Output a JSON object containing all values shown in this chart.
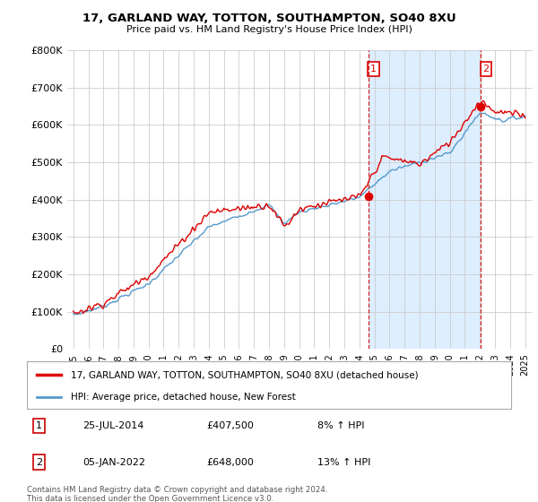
{
  "title": "17, GARLAND WAY, TOTTON, SOUTHAMPTON, SO40 8XU",
  "subtitle": "Price paid vs. HM Land Registry's House Price Index (HPI)",
  "legend_line1": "17, GARLAND WAY, TOTTON, SOUTHAMPTON, SO40 8XU (detached house)",
  "legend_line2": "HPI: Average price, detached house, New Forest",
  "annotation1_date": "25-JUL-2014",
  "annotation1_price": "£407,500",
  "annotation1_hpi": "8% ↑ HPI",
  "annotation2_date": "05-JAN-2022",
  "annotation2_price": "£648,000",
  "annotation2_hpi": "13% ↑ HPI",
  "footnote": "Contains HM Land Registry data © Crown copyright and database right 2024.\nThis data is licensed under the Open Government Licence v3.0.",
  "red_color": "#dd0000",
  "blue_color": "#5599cc",
  "fill_color": "#ddeeff",
  "dashed_color": "#cc2222",
  "grid_color": "#cccccc",
  "bg_color": "#ffffff",
  "ylim": [
    0,
    800000
  ],
  "yticks": [
    0,
    100000,
    200000,
    300000,
    400000,
    500000,
    600000,
    700000,
    800000
  ],
  "ytick_labels": [
    "£0",
    "£100K",
    "£200K",
    "£300K",
    "£400K",
    "£500K",
    "£600K",
    "£700K",
    "£800K"
  ],
  "yr1": 2014.58,
  "yr2": 2022.04,
  "pt1_val": 407500,
  "pt2_val": 648000
}
